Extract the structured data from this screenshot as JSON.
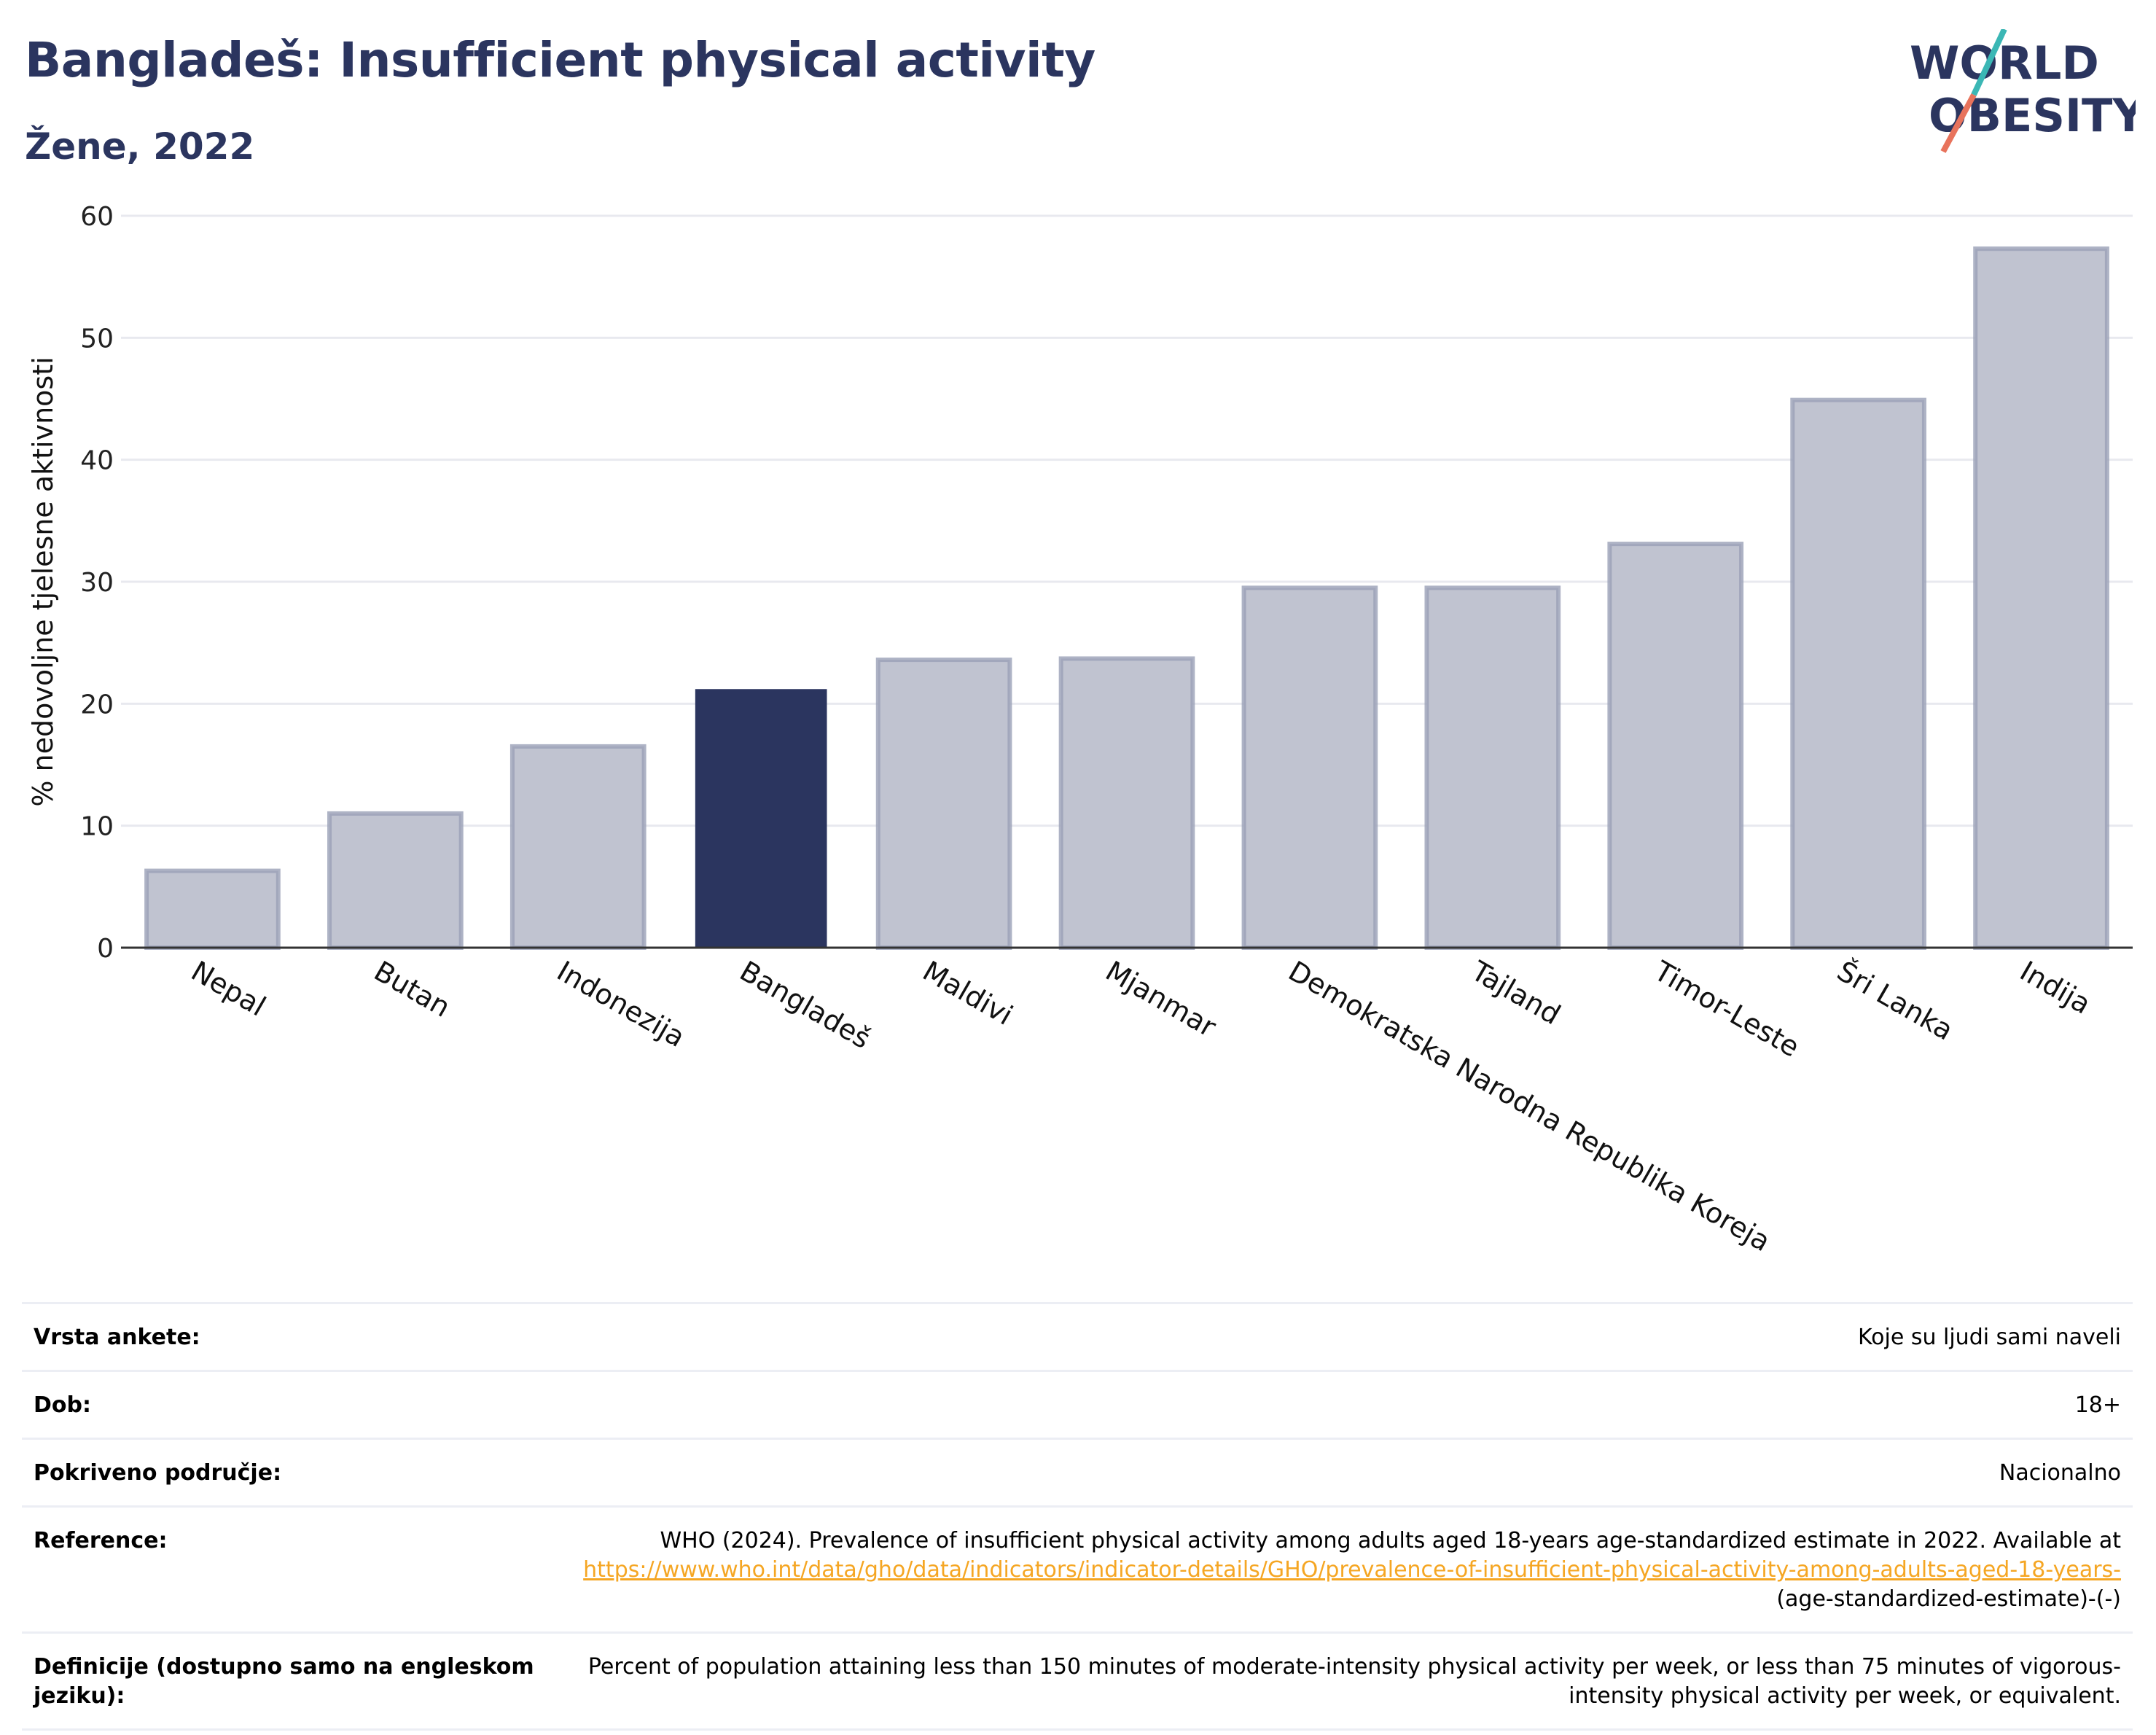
{
  "header": {
    "title": "Bangladeš: Insufficient physical activity",
    "subtitle": "Žene, 2022"
  },
  "logo": {
    "line1": "WORLD",
    "line2": "OBESITY"
  },
  "colors": {
    "highlight_bar": "#2b355f",
    "other_bar": "#c0c3d0",
    "other_bar_border": "#9aa0b7",
    "title": "#2b355f",
    "link": "#f5a623",
    "logo_teal": "#3bb7b5",
    "logo_coral": "#e8735c"
  },
  "chart_data": {
    "type": "bar",
    "categories": [
      "Nepal",
      "Butan",
      "Indonezija",
      "Bangladeš",
      "Maldivi",
      "Mjanmar",
      "Demokratska Narodna Republika Koreja",
      "Tajland",
      "Timor-Leste",
      "Šri Lanka",
      "Indija"
    ],
    "values": [
      6.3,
      11.0,
      16.5,
      21.2,
      23.6,
      23.7,
      29.5,
      29.5,
      33.1,
      44.9,
      57.3
    ],
    "highlight": "Bangladeš",
    "ylabel": "% nedovoljne tjelesne aktivnosti",
    "xlabel": "",
    "ylim": [
      0,
      60
    ],
    "yticks": [
      0,
      10,
      20,
      30,
      40,
      50,
      60
    ],
    "grid": true
  },
  "info": {
    "rows": [
      {
        "label": "Vrsta ankete:",
        "value": "Koje su ljudi sami naveli"
      },
      {
        "label": "Dob:",
        "value": "18+"
      },
      {
        "label": "Pokriveno područje:",
        "value": "Nacionalno"
      },
      {
        "label": "Reference:",
        "value": "WHO (2024). Prevalence of insufficient physical activity among adults aged 18-years age-standardized estimate in 2022. Available at",
        "link": "https://www.who.int/data/gho/data/indicators/indicator-details/GHO/prevalence-of-insufficient-physical-activity-among-adults-aged-18-years-",
        "suffix": "(age-standardized-estimate)-(-)"
      },
      {
        "label": "Definicije (dostupno samo na engleskom jeziku):",
        "value": "Percent of population attaining less than 150 minutes of moderate-intensity physical activity per week, or less than 75 minutes of vigorous-intensity physical activity per week, or equivalent."
      }
    ]
  }
}
